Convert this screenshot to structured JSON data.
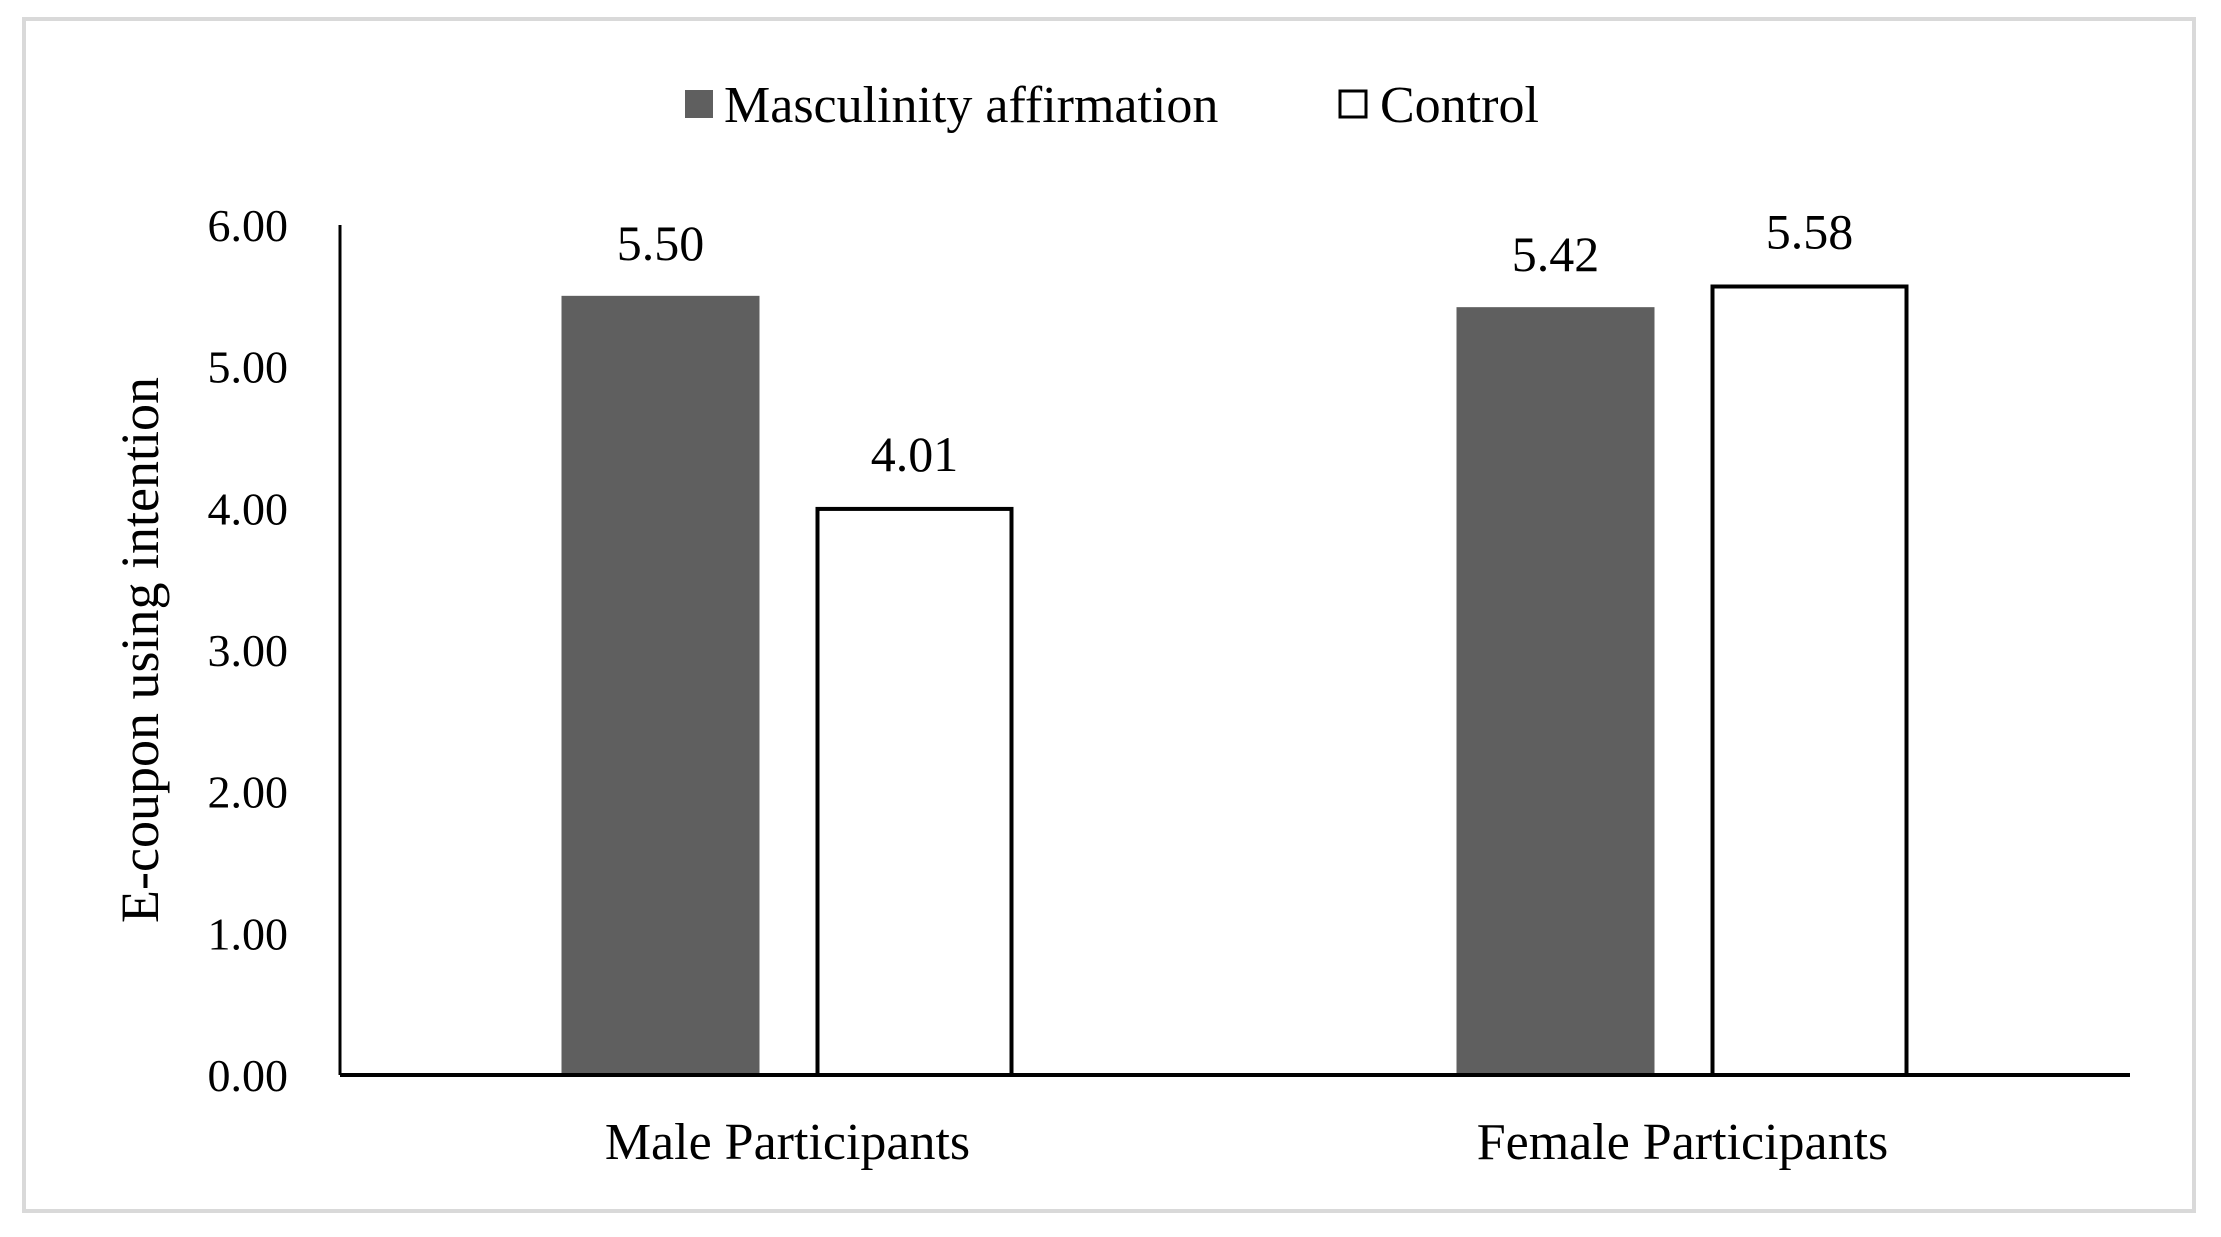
{
  "chart_data": {
    "type": "bar",
    "title": "",
    "xlabel": "",
    "ylabel": "E-coupon using intention",
    "ylim": [
      0,
      6
    ],
    "yticks": [
      0,
      1,
      2,
      3,
      4,
      5,
      6
    ],
    "ytick_labels": [
      "0.00",
      "1.00",
      "2.00",
      "3.00",
      "4.00",
      "5.00",
      "6.00"
    ],
    "categories": [
      "Male Participants",
      "Female Participants"
    ],
    "series": [
      {
        "name": "Masculinity affirmation",
        "values": [
          5.5,
          5.42
        ],
        "labels": [
          "5.50",
          "5.42"
        ],
        "fill": "#5f5f5f",
        "stroke": "#5f5f5f"
      },
      {
        "name": "Control",
        "values": [
          4.01,
          5.58
        ],
        "labels": [
          "4.01",
          "5.58"
        ],
        "fill": "#ffffff",
        "stroke": "#000000"
      }
    ],
    "legend": "top-center",
    "grid": false
  }
}
